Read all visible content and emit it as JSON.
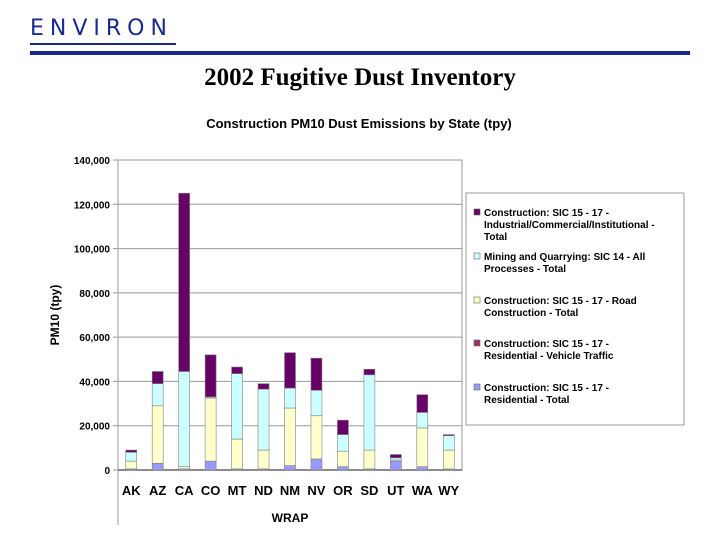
{
  "header": {
    "logo": "ENVIRON",
    "brand_color": "#1a2a8c"
  },
  "slide": {
    "title": "2002 Fugitive Dust Inventory"
  },
  "chart_data": {
    "type": "bar",
    "stacked": true,
    "title": "Construction PM10 Dust Emissions by State (tpy)",
    "xlabel": "WRAP",
    "ylabel": "PM10 (tpy)",
    "ylim": [
      0,
      140000
    ],
    "yticks": [
      0,
      20000,
      40000,
      60000,
      80000,
      100000,
      120000,
      140000
    ],
    "ytick_labels": [
      "0",
      "20,000",
      "40,000",
      "60,000",
      "80,000",
      "100,000",
      "120,000",
      "140,000"
    ],
    "grid": true,
    "legend_position": "right",
    "categories": [
      "AK",
      "AZ",
      "CA",
      "CO",
      "MT",
      "ND",
      "NM",
      "NV",
      "OR",
      "SD",
      "UT",
      "WA",
      "WY"
    ],
    "series": [
      {
        "name": "Construction: SIC 15 - 17 - Residential - Total",
        "color": "#9999ff",
        "values": [
          500,
          3000,
          500,
          4000,
          500,
          500,
          2000,
          5000,
          1500,
          500,
          4000,
          1500,
          500
        ]
      },
      {
        "name": "Construction: SIC 15 - 17 - Road Construction - Total",
        "color": "#ffffcc",
        "values": [
          3500,
          26000,
          1000,
          28500,
          13500,
          8500,
          26000,
          19500,
          7000,
          8500,
          500,
          17500,
          8500
        ]
      },
      {
        "name": "Mining and Quarrying: SIC 14 - All Processes - Total",
        "color": "#ccffff",
        "values": [
          4000,
          10000,
          43000,
          500,
          29500,
          27500,
          9000,
          11500,
          7500,
          34000,
          1000,
          7000,
          6500
        ]
      },
      {
        "name": "Construction: SIC 15 - 17 - Residential - Vehicle Traffic",
        "color": "#993366",
        "values": [
          0,
          0,
          0,
          0,
          0,
          0,
          0,
          0,
          0,
          0,
          0,
          0,
          0
        ]
      },
      {
        "name": "Construction: SIC 15 - 17 - Industrial/Commercial/Institutional - Total",
        "color": "#660066",
        "values": [
          1000,
          5500,
          80500,
          19000,
          3000,
          2500,
          16000,
          14500,
          6500,
          2500,
          1500,
          8000,
          500
        ]
      }
    ],
    "legend_order": [
      "Construction: SIC 15 - 17 - Industrial/Commercial/Institutional - Total",
      "Mining and Quarrying: SIC 14 - All Processes - Total",
      "Construction: SIC 15 - 17 - Road Construction - Total",
      "Construction: SIC 15 - 17 - Residential - Vehicle Traffic",
      "Construction: SIC 15 - 17 - Residential - Total"
    ]
  }
}
